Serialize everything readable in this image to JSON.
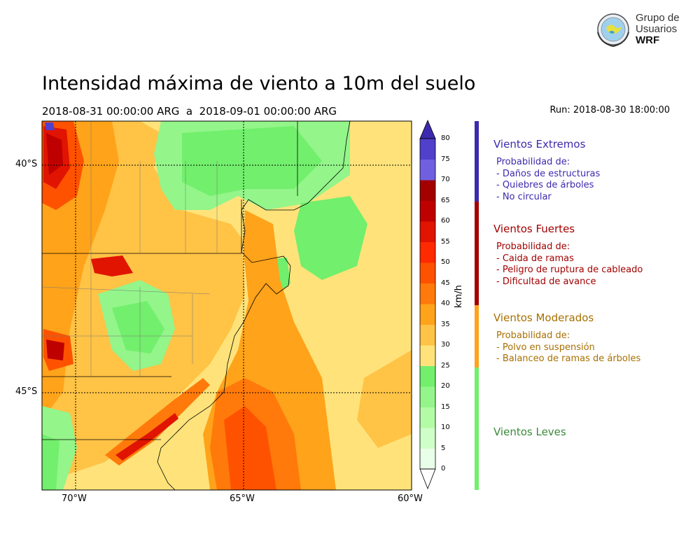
{
  "title": "Intensidad máxima de viento a 10m del suelo",
  "subtitle": "2018-08-31 00:00:00 ARG  a  2018-09-01 00:00:00 ARG",
  "run": "Run: 2018-08-30 18:00:00",
  "logo": {
    "line1": "Grupo de",
    "line2": "Usuarios",
    "line3": "WRF"
  },
  "map": {
    "lon_ticks": [
      "70°W",
      "65°W",
      "60°W"
    ],
    "lat_ticks": [
      "40°S",
      "45°S"
    ],
    "lon_range": [
      -71,
      -60
    ],
    "lat_range": [
      -39,
      -47.1
    ]
  },
  "colorbar": {
    "unit": "km/h",
    "levels": [
      "0",
      "5",
      "10",
      "15",
      "20",
      "25",
      "30",
      "35",
      "40",
      "45",
      "50",
      "55",
      "60",
      "65",
      "70",
      "75",
      "80"
    ],
    "colors": [
      "#eaffea",
      "#cfffc8",
      "#b4fba6",
      "#93f58a",
      "#72ef6c",
      "#ffe37a",
      "#ffc346",
      "#ffa31a",
      "#ff7a0a",
      "#ff5200",
      "#ff2a00",
      "#e01400",
      "#bf0000",
      "#a30000",
      "#7060e0",
      "#5040cc",
      "#3c2aae"
    ]
  },
  "categories": [
    {
      "name": "Vientos Extremos",
      "color": "#3c2aae",
      "lines": [
        "Probabilidad de:",
        "- Daños de estructuras",
        "- Quiebres de árboles",
        "- No circular"
      ]
    },
    {
      "name": "Vientos Fuertes",
      "color": "#a30000",
      "lines": [
        "Probabilidad de:",
        "- Caida de ramas",
        "- Peligro de ruptura de cableado",
        "- Dificultad de avance"
      ]
    },
    {
      "name": "Vientos Moderados",
      "color": "#a87000",
      "bar_color": "#ffa31a",
      "lines": [
        "Probabilidad de:",
        "- Polvo en suspensión",
        "- Balanceo de ramas de árboles"
      ]
    },
    {
      "name": "Vientos Leves",
      "color": "#3a8a3a",
      "bar_color": "#72ef6c",
      "lines": []
    }
  ]
}
